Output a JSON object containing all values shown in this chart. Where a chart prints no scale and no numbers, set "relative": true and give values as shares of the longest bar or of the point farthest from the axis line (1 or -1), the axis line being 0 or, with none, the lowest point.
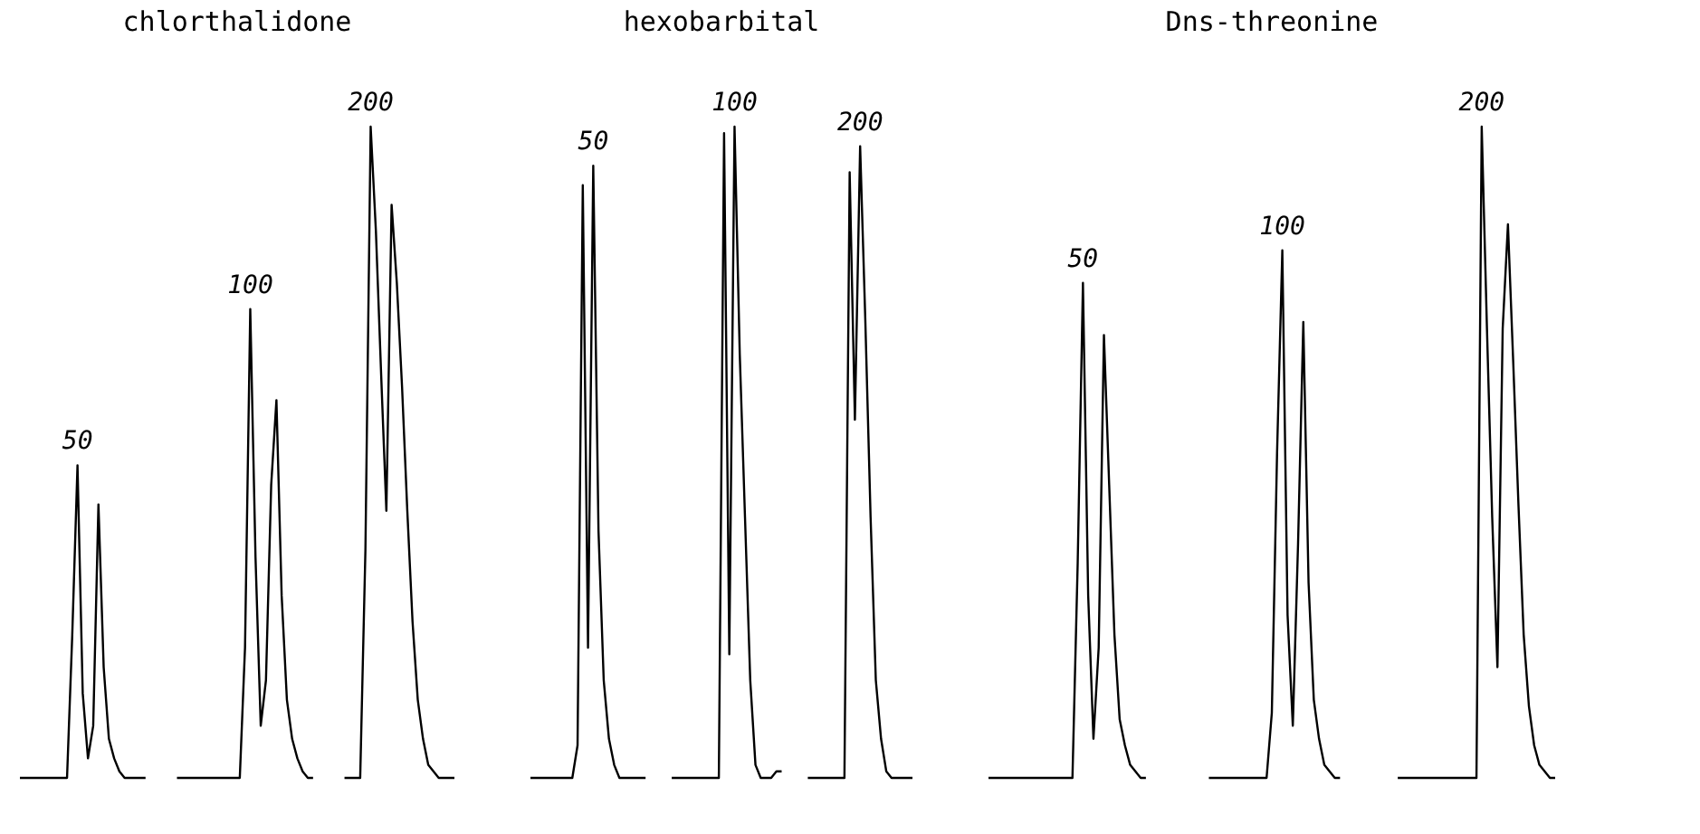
{
  "chart_data": [
    {
      "type": "line",
      "title": "chlorthalidone",
      "relative": true,
      "tick_labels": false,
      "legend": false,
      "categories": [
        null,
        null,
        null,
        null,
        null,
        null,
        null,
        null,
        null,
        null,
        null,
        null,
        null,
        null,
        null,
        null,
        null,
        null,
        null,
        null,
        null,
        null,
        null,
        null,
        null,
        null,
        null,
        null,
        null,
        null,
        null,
        null,
        null,
        null,
        null,
        null,
        null,
        null,
        null,
        null,
        null,
        null,
        null,
        null,
        null,
        null,
        null,
        null,
        null,
        null,
        null,
        null,
        null,
        null,
        null,
        null,
        null,
        null,
        null,
        null,
        null,
        null,
        null,
        null,
        null,
        null,
        null,
        null,
        null,
        null,
        null,
        null,
        null,
        null,
        null,
        null,
        null,
        null,
        null,
        null,
        null,
        null,
        null,
        null
      ],
      "series": [
        {
          "name": "50",
          "color": "#000000",
          "values": [
            0,
            0,
            0,
            0,
            0,
            0,
            0,
            0,
            0,
            0,
            0.22,
            0.48,
            0.13,
            0.03,
            0.08,
            0.42,
            0.17,
            0.06,
            0.03,
            0.01,
            0,
            0,
            0,
            0,
            0,
            null,
            null,
            null,
            null,
            null,
            null,
            null,
            null,
            null,
            null,
            null,
            null,
            null,
            null,
            null,
            null,
            null,
            null,
            null,
            null,
            null,
            null,
            null,
            null,
            null,
            null,
            null,
            null,
            null,
            null,
            null,
            null,
            null,
            null,
            null,
            null,
            null,
            null,
            null,
            null,
            null,
            null,
            null,
            null,
            null,
            null,
            null,
            null,
            null,
            null,
            null,
            null,
            null,
            null,
            null,
            null,
            null,
            null,
            null
          ]
        },
        {
          "name": "100",
          "color": "#000000",
          "values": [
            null,
            null,
            null,
            null,
            null,
            null,
            null,
            null,
            null,
            null,
            null,
            null,
            null,
            null,
            null,
            null,
            null,
            null,
            null,
            null,
            null,
            null,
            null,
            null,
            null,
            null,
            null,
            null,
            null,
            null,
            0,
            0,
            0,
            0,
            0,
            0,
            0,
            0,
            0,
            0,
            0,
            0,
            0,
            0.2,
            0.72,
            0.34,
            0.08,
            0.15,
            0.45,
            0.58,
            0.28,
            0.12,
            0.06,
            0.03,
            0.01,
            0,
            0,
            null,
            null,
            null,
            null,
            null,
            null,
            null,
            null,
            null,
            null,
            null,
            null,
            null,
            null,
            null,
            null,
            null,
            null,
            null,
            null,
            null,
            null,
            null,
            null,
            null,
            null,
            null
          ]
        },
        {
          "name": "200",
          "color": "#000000",
          "values": [
            null,
            null,
            null,
            null,
            null,
            null,
            null,
            null,
            null,
            null,
            null,
            null,
            null,
            null,
            null,
            null,
            null,
            null,
            null,
            null,
            null,
            null,
            null,
            null,
            null,
            null,
            null,
            null,
            null,
            null,
            null,
            null,
            null,
            null,
            null,
            null,
            null,
            null,
            null,
            null,
            null,
            null,
            null,
            null,
            null,
            null,
            null,
            null,
            null,
            null,
            null,
            null,
            null,
            null,
            null,
            null,
            null,
            null,
            null,
            null,
            null,
            null,
            0,
            0,
            0,
            0,
            0.35,
            1,
            0.84,
            0.62,
            0.41,
            0.88,
            0.76,
            0.6,
            0.41,
            0.24,
            0.12,
            0.06,
            0.02,
            0.01,
            0,
            0,
            0,
            0
          ]
        }
      ]
    },
    {
      "type": "line",
      "title": "hexobarbital",
      "relative": true,
      "tick_labels": false,
      "legend": false,
      "categories": [
        null,
        null,
        null,
        null,
        null,
        null,
        null,
        null,
        null,
        null,
        null,
        null,
        null,
        null,
        null,
        null,
        null,
        null,
        null,
        null,
        null,
        null,
        null,
        null,
        null,
        null,
        null,
        null,
        null,
        null,
        null,
        null,
        null,
        null,
        null,
        null,
        null,
        null,
        null,
        null,
        null,
        null,
        null,
        null,
        null,
        null,
        null,
        null,
        null,
        null,
        null,
        null,
        null,
        null,
        null,
        null,
        null,
        null,
        null,
        null,
        null,
        null,
        null,
        null,
        null,
        null,
        null,
        null,
        null,
        null,
        null,
        null,
        null,
        null
      ],
      "series": [
        {
          "name": "50",
          "color": "#000000",
          "values": [
            0,
            0,
            0,
            0,
            0,
            0,
            0,
            0,
            0,
            0.05,
            0.91,
            0.2,
            0.94,
            0.38,
            0.15,
            0.06,
            0.02,
            0,
            0,
            0,
            0,
            0,
            0,
            null,
            null,
            null,
            null,
            null,
            null,
            null,
            null,
            null,
            null,
            null,
            null,
            null,
            null,
            null,
            null,
            null,
            null,
            null,
            null,
            null,
            null,
            null,
            null,
            null,
            null,
            null,
            null,
            null,
            null,
            null,
            null,
            null,
            null,
            null,
            null,
            null,
            null,
            null,
            null,
            null,
            null,
            null,
            null,
            null,
            null,
            null,
            null,
            null,
            null,
            null
          ]
        },
        {
          "name": "100",
          "color": "#000000",
          "values": [
            null,
            null,
            null,
            null,
            null,
            null,
            null,
            null,
            null,
            null,
            null,
            null,
            null,
            null,
            null,
            null,
            null,
            null,
            null,
            null,
            null,
            null,
            null,
            null,
            null,
            null,
            null,
            0,
            0,
            0,
            0,
            0,
            0,
            0,
            0,
            0,
            0,
            0.99,
            0.19,
            1,
            0.65,
            0.4,
            0.15,
            0.02,
            0,
            0,
            0,
            0.01,
            0.01,
            null,
            null,
            null,
            null,
            null,
            null,
            null,
            null,
            null,
            null,
            null,
            null,
            null,
            null,
            null,
            null,
            null,
            null,
            null,
            null,
            null,
            null,
            null,
            null,
            null
          ]
        },
        {
          "name": "200",
          "color": "#000000",
          "values": [
            null,
            null,
            null,
            null,
            null,
            null,
            null,
            null,
            null,
            null,
            null,
            null,
            null,
            null,
            null,
            null,
            null,
            null,
            null,
            null,
            null,
            null,
            null,
            null,
            null,
            null,
            null,
            null,
            null,
            null,
            null,
            null,
            null,
            null,
            null,
            null,
            null,
            null,
            null,
            null,
            null,
            null,
            null,
            null,
            null,
            null,
            null,
            null,
            null,
            null,
            null,
            null,
            null,
            0,
            0,
            0,
            0,
            0,
            0,
            0,
            0,
            0.93,
            0.55,
            0.97,
            0.7,
            0.4,
            0.15,
            0.06,
            0.01,
            0,
            0,
            0,
            0,
            0
          ]
        }
      ]
    },
    {
      "type": "line",
      "title": "Dns-threonine",
      "relative": true,
      "tick_labels": false,
      "legend": false,
      "categories": [
        null,
        null,
        null,
        null,
        null,
        null,
        null,
        null,
        null,
        null,
        null,
        null,
        null,
        null,
        null,
        null,
        null,
        null,
        null,
        null,
        null,
        null,
        null,
        null,
        null,
        null,
        null,
        null,
        null,
        null,
        null,
        null,
        null,
        null,
        null,
        null,
        null,
        null,
        null,
        null,
        null,
        null,
        null,
        null,
        null,
        null,
        null,
        null,
        null,
        null,
        null,
        null,
        null,
        null,
        null,
        null,
        null,
        null,
        null,
        null,
        null,
        null,
        null,
        null,
        null,
        null,
        null,
        null,
        null,
        null,
        null,
        null,
        null,
        null,
        null,
        null,
        null,
        null,
        null,
        null,
        null,
        null,
        null,
        null,
        null,
        null,
        null,
        null,
        null,
        null,
        null,
        null,
        null,
        null,
        null,
        null,
        null,
        null,
        null,
        null,
        null,
        null,
        null,
        null,
        null,
        null,
        null,
        null,
        null
      ],
      "series": [
        {
          "name": "50",
          "color": "#000000",
          "values": [
            0,
            0,
            0,
            0,
            0,
            0,
            0,
            0,
            0,
            0,
            0,
            0,
            0,
            0,
            0,
            0,
            0,
            0.33,
            0.76,
            0.28,
            0.06,
            0.2,
            0.68,
            0.45,
            0.22,
            0.09,
            0.05,
            0.02,
            0.01,
            0,
            0,
            null,
            null,
            null,
            null,
            null,
            null,
            null,
            null,
            null,
            null,
            null,
            null,
            null,
            null,
            null,
            null,
            null,
            null,
            null,
            null,
            null,
            null,
            null,
            null,
            null,
            null,
            null,
            null,
            null,
            null,
            null,
            null,
            null,
            null,
            null,
            null,
            null,
            null,
            null,
            null,
            null,
            null,
            null,
            null,
            null,
            null,
            null,
            null,
            null,
            null,
            null,
            null,
            null,
            null,
            null,
            null,
            null,
            null,
            null,
            null,
            null,
            null,
            null,
            null,
            null,
            null,
            null,
            null,
            null,
            null,
            null,
            null,
            null,
            null,
            null,
            null,
            null,
            null
          ]
        },
        {
          "name": "100",
          "color": "#000000",
          "values": [
            null,
            null,
            null,
            null,
            null,
            null,
            null,
            null,
            null,
            null,
            null,
            null,
            null,
            null,
            null,
            null,
            null,
            null,
            null,
            null,
            null,
            null,
            null,
            null,
            null,
            null,
            null,
            null,
            null,
            null,
            null,
            null,
            null,
            null,
            null,
            null,
            null,
            null,
            null,
            null,
            null,
            null,
            0,
            0,
            0,
            0,
            0,
            0,
            0,
            0,
            0,
            0,
            0,
            0,
            0.1,
            0.5,
            0.81,
            0.25,
            0.08,
            0.36,
            0.7,
            0.3,
            0.12,
            0.06,
            0.02,
            0.01,
            0,
            0,
            null,
            null,
            null,
            null,
            null,
            null,
            null,
            null,
            null,
            null,
            null,
            null,
            null,
            null,
            null,
            null,
            null,
            null,
            null,
            null,
            null,
            null,
            null,
            null,
            null,
            null,
            null,
            null,
            null,
            null,
            null,
            null,
            null,
            null,
            null,
            null,
            null,
            null,
            null,
            null,
            null
          ]
        },
        {
          "name": "200",
          "color": "#000000",
          "values": [
            null,
            null,
            null,
            null,
            null,
            null,
            null,
            null,
            null,
            null,
            null,
            null,
            null,
            null,
            null,
            null,
            null,
            null,
            null,
            null,
            null,
            null,
            null,
            null,
            null,
            null,
            null,
            null,
            null,
            null,
            null,
            null,
            null,
            null,
            null,
            null,
            null,
            null,
            null,
            null,
            null,
            null,
            null,
            null,
            null,
            null,
            null,
            null,
            null,
            null,
            null,
            null,
            null,
            null,
            null,
            null,
            null,
            null,
            null,
            null,
            null,
            null,
            null,
            null,
            null,
            null,
            null,
            null,
            null,
            null,
            null,
            null,
            null,
            null,
            null,
            null,
            null,
            null,
            0,
            0,
            0,
            0,
            0,
            0,
            0,
            0,
            0,
            0,
            0,
            0,
            0,
            0,
            0,
            0,
            1,
            0.69,
            0.4,
            0.17,
            0.69,
            0.85,
            0.64,
            0.42,
            0.22,
            0.11,
            0.05,
            0.02,
            0.01,
            0,
            0
          ]
        }
      ]
    }
  ]
}
